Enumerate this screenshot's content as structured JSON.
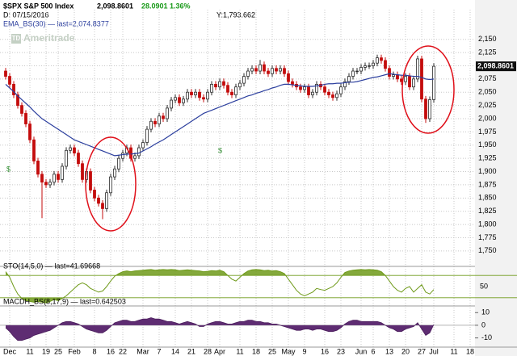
{
  "chart_data": [
    {
      "type": "candlestick",
      "title": "$SPX S&P 500 Index",
      "price": "2,098.8601",
      "change": "28.0901",
      "change_pct": "1.36%",
      "date": "D: 07/15/2016",
      "cursor": "Y:1,793.662",
      "watermark": "Ameritrade",
      "logo": "TD",
      "annotations": [
        "$",
        "$"
      ],
      "up_color": "#2b2b2b",
      "down_color": "#c40c0c",
      "categories": [
        null,
        "Dec",
        null,
        null,
        null,
        null,
        "11",
        null,
        null,
        null,
        "19",
        null,
        null,
        "25",
        null,
        null,
        null,
        "Feb",
        null,
        null,
        null,
        null,
        "8",
        null,
        null,
        null,
        "16",
        null,
        null,
        "22",
        null,
        null,
        null,
        null,
        "Mar",
        null,
        null,
        null,
        "7",
        null,
        null,
        null,
        "14",
        null,
        null,
        null,
        "21",
        null,
        null,
        null,
        "28",
        null,
        null,
        "Apr",
        null,
        null,
        null,
        null,
        "11",
        null,
        null,
        null,
        "18",
        null,
        null,
        null,
        "25",
        null,
        null,
        null,
        "May",
        null,
        null,
        null,
        "9",
        null,
        null,
        null,
        null,
        "16",
        null,
        null,
        null,
        "23",
        null,
        null,
        null,
        null,
        "Jun",
        null,
        null,
        "6",
        null,
        null,
        null,
        "13",
        null,
        null,
        null,
        "20",
        null,
        null,
        null,
        "27",
        null,
        null,
        "Jul",
        null,
        null,
        null,
        null,
        "11",
        null,
        null,
        null,
        "18"
      ],
      "open": [
        2090,
        2080,
        2065,
        2045,
        2025,
        2010,
        1990,
        1960,
        1920,
        1895,
        1880,
        1875,
        1880,
        1895,
        1885,
        1910,
        1940,
        1945,
        1935,
        1915,
        1885,
        1900,
        1865,
        1850,
        1840,
        1830,
        1860,
        1890,
        1905,
        1925,
        1935,
        1945,
        1925,
        1930,
        1945,
        1955,
        1980,
        1995,
        1990,
        2005,
        2000,
        2020,
        2035,
        2040,
        2030,
        2037,
        2050,
        2045,
        2050,
        2040,
        2037,
        2050,
        2065,
        2060,
        2070,
        2063,
        2050,
        2045,
        2060,
        2067,
        2080,
        2090,
        2095,
        2090,
        2102,
        2090,
        2085,
        2095,
        2090,
        2095,
        2085,
        2070,
        2065,
        2060,
        2055,
        2060,
        2045,
        2050,
        2065,
        2060,
        2050,
        2045,
        2040,
        2047,
        2060,
        2070,
        2080,
        2090,
        2090,
        2097,
        2100,
        2100,
        2105,
        2115,
        2110,
        2095,
        2080,
        2083,
        2075,
        2070,
        2080,
        2060,
        2075,
        2113,
        2037,
        2000,
        2036,
        null,
        null,
        null,
        null,
        null,
        null,
        null,
        null,
        null
      ],
      "high": [
        2096,
        2086,
        2071,
        2051,
        2031,
        2016,
        1996,
        1966,
        1926,
        1901,
        1886,
        1886,
        1901,
        1901,
        1916,
        1946,
        1951,
        1951,
        1941,
        1921,
        1906,
        1906,
        1871,
        1856,
        1846,
        1866,
        1896,
        1911,
        1931,
        1941,
        1951,
        1951,
        1936,
        1951,
        1961,
        1986,
        2001,
        2001,
        2011,
        2011,
        2026,
        2041,
        2046,
        2046,
        2043,
        2056,
        2056,
        2056,
        2056,
        2046,
        2056,
        2071,
        2071,
        2076,
        2076,
        2069,
        2056,
        2066,
        2073,
        2086,
        2096,
        2101,
        2101,
        2111,
        2108,
        2096,
        2101,
        2101,
        2101,
        2101,
        2091,
        2076,
        2071,
        2066,
        2066,
        2066,
        2056,
        2071,
        2071,
        2066,
        2056,
        2051,
        2053,
        2066,
        2076,
        2086,
        2096,
        2096,
        2103,
        2106,
        2106,
        2111,
        2121,
        2121,
        2116,
        2101,
        2089,
        2089,
        2081,
        2086,
        2086,
        2081,
        2119,
        2119,
        2043,
        2042,
        2105,
        null,
        null,
        null,
        null,
        null,
        null,
        null,
        null,
        null
      ],
      "low": [
        2074,
        2059,
        2039,
        2019,
        2004,
        1984,
        1954,
        1914,
        1889,
        1812,
        1869,
        1869,
        1874,
        1879,
        1879,
        1904,
        1934,
        1929,
        1909,
        1879,
        1879,
        1859,
        1844,
        1834,
        1810,
        1824,
        1854,
        1884,
        1899,
        1919,
        1929,
        1919,
        1919,
        1924,
        1939,
        1949,
        1974,
        1984,
        1984,
        1994,
        1994,
        2014,
        2029,
        2024,
        2024,
        2031,
        2039,
        2039,
        2034,
        2031,
        2031,
        2044,
        2054,
        2054,
        2057,
        2044,
        2039,
        2039,
        2054,
        2061,
        2074,
        2084,
        2084,
        2084,
        2084,
        2079,
        2079,
        2084,
        2084,
        2079,
        2064,
        2059,
        2054,
        2049,
        2049,
        2039,
        2039,
        2044,
        2054,
        2044,
        2039,
        2034,
        2034,
        2041,
        2054,
        2064,
        2074,
        2084,
        2084,
        2091,
        2094,
        2094,
        2099,
        2104,
        2089,
        2074,
        2074,
        2069,
        2064,
        2064,
        2054,
        2054,
        2069,
        2031,
        1992,
        1994,
        2030,
        null,
        null,
        null,
        null,
        null,
        null,
        null,
        null,
        null
      ],
      "close": [
        2080,
        2065,
        2045,
        2025,
        2010,
        1990,
        1960,
        1920,
        1895,
        1880,
        1875,
        1880,
        1895,
        1885,
        1910,
        1940,
        1945,
        1935,
        1915,
        1885,
        1900,
        1865,
        1850,
        1840,
        1830,
        1860,
        1890,
        1905,
        1925,
        1935,
        1945,
        1925,
        1930,
        1945,
        1955,
        1980,
        1995,
        1990,
        2005,
        2000,
        2020,
        2035,
        2040,
        2030,
        2037,
        2050,
        2045,
        2050,
        2040,
        2037,
        2050,
        2065,
        2060,
        2070,
        2063,
        2050,
        2045,
        2060,
        2067,
        2080,
        2090,
        2095,
        2090,
        2102,
        2090,
        2085,
        2095,
        2090,
        2095,
        2085,
        2070,
        2065,
        2060,
        2055,
        2060,
        2045,
        2050,
        2065,
        2060,
        2050,
        2045,
        2040,
        2047,
        2060,
        2070,
        2080,
        2090,
        2090,
        2097,
        2100,
        2100,
        2105,
        2115,
        2110,
        2095,
        2080,
        2083,
        2075,
        2070,
        2080,
        2060,
        2075,
        2113,
        2037,
        2000,
        2036,
        2099,
        null,
        null,
        null,
        null,
        null,
        null,
        null,
        null,
        null
      ],
      "series": [
        {
          "name": "EMA_BS(30) — last=2,074.8377",
          "color": "#2c3f9e",
          "values": [
            2065,
            2058,
            2051,
            2043,
            2036,
            2029,
            2022,
            2014,
            2007,
            2000,
            1995,
            1990,
            1985,
            1980,
            1975,
            1970,
            1965,
            1960,
            1957,
            1954,
            1951,
            1948,
            1945,
            1942,
            1939,
            1936,
            1933,
            1930,
            1931,
            1932,
            1933,
            1933,
            1934,
            1935,
            1939,
            1943,
            1947,
            1952,
            1956,
            1960,
            1965,
            1970,
            1975,
            1980,
            1985,
            1990,
            1995,
            2000,
            2005,
            2010,
            2013,
            2016,
            2019,
            2022,
            2025,
            2028,
            2031,
            2034,
            2037,
            2040,
            2043,
            2045,
            2048,
            2050,
            2053,
            2055,
            2058,
            2060,
            2063,
            2065,
            2065,
            2064,
            2063,
            2062,
            2061,
            2061,
            2061,
            2062,
            2063,
            2065,
            2066,
            2066,
            2067,
            2067,
            2068,
            2069,
            2069,
            2070,
            2072,
            2074,
            2076,
            2078,
            2079,
            2081,
            2083,
            2085,
            2084,
            2083,
            2082,
            2082,
            2081,
            2080,
            2080,
            2078,
            2075,
            2074,
            2075,
            null,
            null,
            null,
            null,
            null,
            null,
            null,
            null,
            null
          ]
        }
      ],
      "ylim": [
        1733,
        2206
      ],
      "yticks": [
        {
          "value": 1750,
          "label": "1,750"
        },
        {
          "value": 1775,
          "label": "1,775"
        },
        {
          "value": 1800,
          "label": "1,800"
        },
        {
          "value": 1825,
          "label": "1,825"
        },
        {
          "value": 1850,
          "label": "1,850"
        },
        {
          "value": 1875,
          "label": "1,875"
        },
        {
          "value": 1900,
          "label": "1,900"
        },
        {
          "value": 1925,
          "label": "1,925"
        },
        {
          "value": 1950,
          "label": "1,950"
        },
        {
          "value": 1975,
          "label": "1,975"
        },
        {
          "value": 2000,
          "label": "2,000"
        },
        {
          "value": 2025,
          "label": "2,025"
        },
        {
          "value": 2050,
          "label": "2,050"
        },
        {
          "value": 2075,
          "label": "2,075"
        },
        {
          "value": 2100,
          "label": "2,100"
        },
        {
          "value": 2125,
          "label": "2,125"
        },
        {
          "value": 2150,
          "label": "2,150"
        }
      ],
      "grid": true
    },
    {
      "type": "oscillator",
      "title": "STO(14,5,0) — last=41.69668",
      "color": "#6f9a1a",
      "fill": "#6f9a1a",
      "values": [
        90,
        75,
        50,
        30,
        18,
        12,
        10,
        8,
        10,
        8,
        6,
        10,
        15,
        12,
        18,
        25,
        35,
        45,
        55,
        60,
        55,
        45,
        40,
        35,
        38,
        50,
        65,
        78,
        85,
        90,
        92,
        90,
        92,
        93,
        94,
        95,
        96,
        94,
        95,
        96,
        95,
        96,
        95,
        93,
        94,
        95,
        94,
        93,
        92,
        90,
        91,
        93,
        92,
        94,
        90,
        80,
        70,
        65,
        75,
        85,
        92,
        95,
        96,
        95,
        93,
        94,
        92,
        93,
        90,
        85,
        70,
        55,
        40,
        30,
        25,
        30,
        35,
        45,
        42,
        40,
        45,
        50,
        60,
        75,
        88,
        92,
        94,
        95,
        96,
        95,
        96,
        95,
        94,
        90,
        80,
        65,
        50,
        40,
        35,
        45,
        50,
        35,
        45,
        55,
        35,
        30,
        42,
        null,
        null,
        null,
        null,
        null,
        null,
        null,
        null,
        null
      ],
      "levels": [
        80,
        20
      ],
      "ylim": [
        0,
        100
      ],
      "yticks": [
        50
      ]
    },
    {
      "type": "area",
      "title": "MACDH_BS(8,17,9) — last=0.642503",
      "color": "#4b1e5c",
      "fill": "#5e2c72",
      "values": [
        -2,
        -5,
        -9,
        -12,
        -12,
        -11,
        -10,
        -8,
        -7,
        -6,
        -5,
        -4,
        -2,
        0,
        2,
        3,
        3,
        2,
        1,
        -1,
        -3,
        -4,
        -5,
        -6,
        -6,
        -4,
        -1,
        2,
        3,
        4,
        4,
        3,
        3,
        4,
        5,
        5,
        6,
        5,
        5,
        4,
        3,
        3,
        2,
        1,
        2,
        3,
        2,
        1,
        -1,
        -1,
        1,
        2,
        3,
        3,
        2,
        1,
        1,
        2,
        3,
        3,
        4,
        4,
        3,
        3,
        2,
        2,
        1,
        1,
        0,
        -1,
        -2,
        -3,
        -4,
        -4,
        -3,
        -3,
        -4,
        -3,
        -3,
        -4,
        -5,
        -5,
        -4,
        -2,
        1,
        3,
        4,
        4,
        3,
        3,
        3,
        3,
        3,
        2,
        0,
        -2,
        -3,
        -5,
        -5,
        -3,
        -2,
        -1,
        2,
        -3,
        -8,
        -6,
        0.6,
        null,
        null,
        null,
        null,
        null,
        null,
        null,
        null,
        null
      ],
      "ylim": [
        -16,
        14
      ],
      "yticks": [
        10,
        0,
        -10
      ]
    }
  ]
}
